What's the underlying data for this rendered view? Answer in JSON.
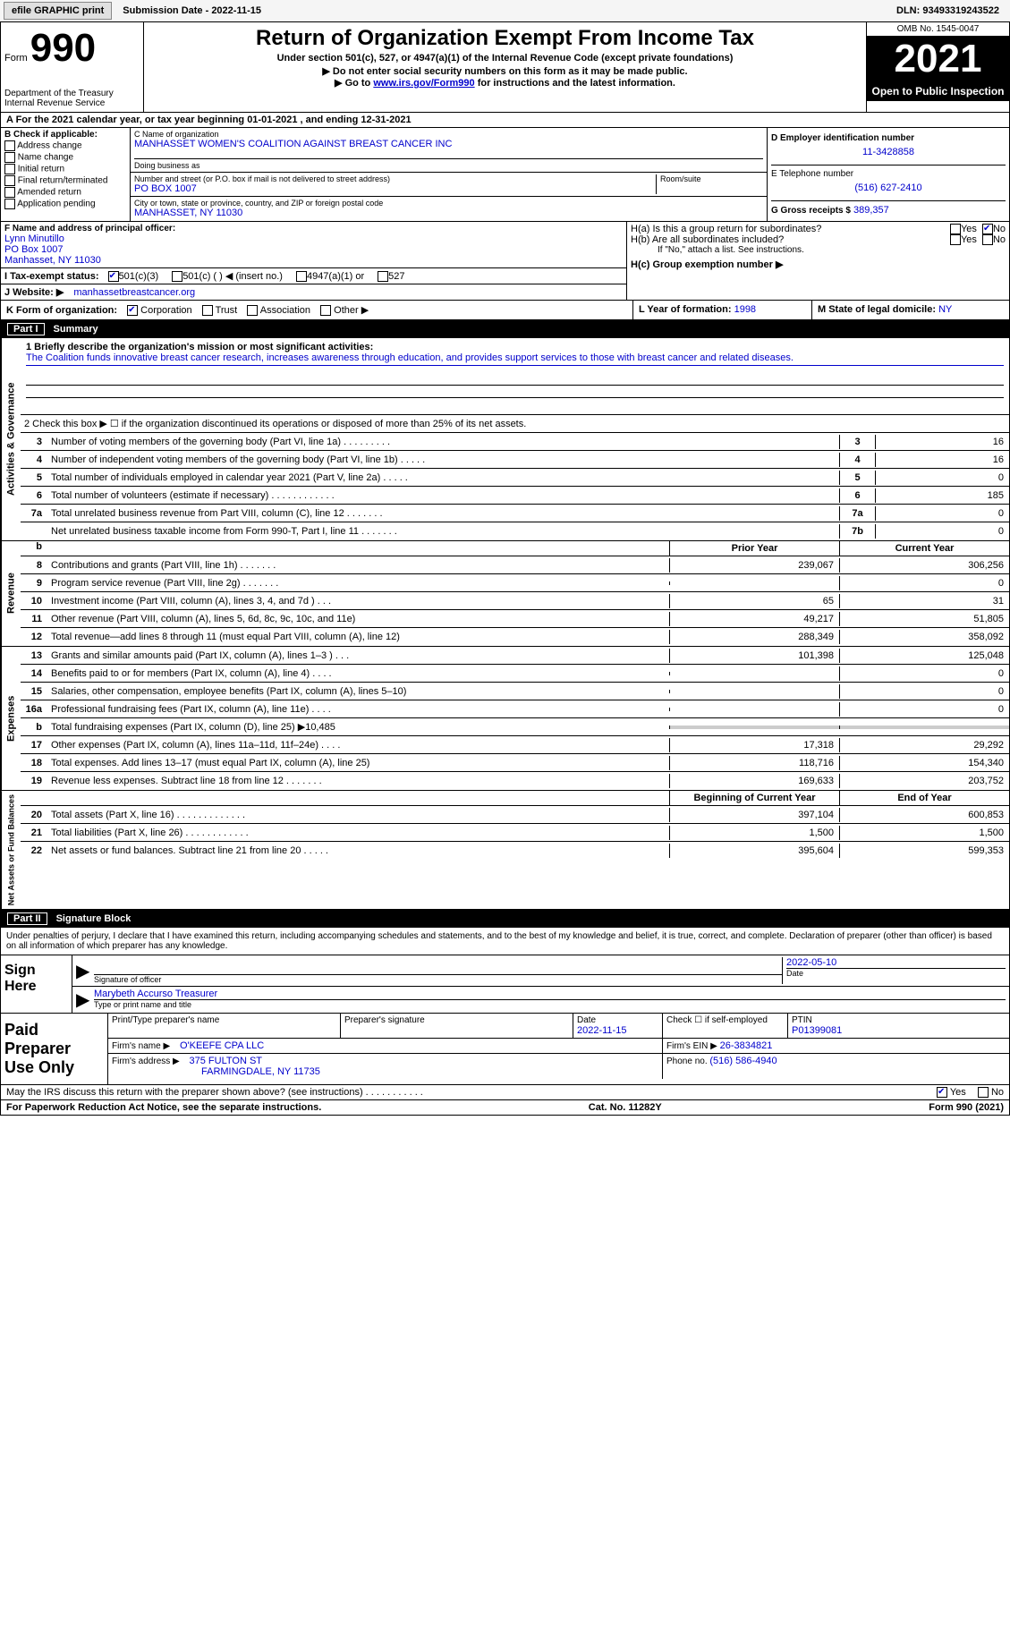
{
  "top": {
    "efile_btn": "efile GRAPHIC print",
    "submission_date_label": "Submission Date - 2022-11-15",
    "dln": "DLN: 93493319243522"
  },
  "header": {
    "form_label": "Form",
    "form_number": "990",
    "dept": "Department of the Treasury Internal Revenue Service",
    "title": "Return of Organization Exempt From Income Tax",
    "sub1": "Under section 501(c), 527, or 4947(a)(1) of the Internal Revenue Code (except private foundations)",
    "sub2": "▶ Do not enter social security numbers on this form as it may be made public.",
    "sub3_pre": "▶ Go to ",
    "sub3_link": "www.irs.gov/Form990",
    "sub3_post": " for instructions and the latest information.",
    "omb": "OMB No. 1545-0047",
    "tax_year": "2021",
    "open_public": "Open to Public Inspection"
  },
  "rowA": "A   For the 2021 calendar year, or tax year beginning 01-01-2021    , and ending 12-31-2021",
  "colB": {
    "header": "B Check if applicable:",
    "opts": [
      "Address change",
      "Name change",
      "Initial return",
      "Final return/terminated",
      "Amended return",
      "Application pending"
    ]
  },
  "colC": {
    "name_label": "C Name of organization",
    "name_val": "MANHASSET WOMEN'S COALITION AGAINST BREAST CANCER INC",
    "dba_label": "Doing business as",
    "addr_label": "Number and street (or P.O. box if mail is not delivered to street address)",
    "room_label": "Room/suite",
    "addr_val": "PO BOX 1007",
    "city_label": "City or town, state or province, country, and ZIP or foreign postal code",
    "city_val": "MANHASSET, NY  11030"
  },
  "colD": {
    "ein_label": "D  Employer identification number",
    "ein_val": "11-3428858",
    "phone_label": "E  Telephone number",
    "phone_val": "(516) 627-2410",
    "gross_label": "G  Gross receipts $",
    "gross_val": "389,357"
  },
  "rowF": {
    "label": "F  Name and address of principal officer:",
    "name": "Lynn Minutillo",
    "addr1": "PO Box 1007",
    "addr2": "Manhasset, NY  11030"
  },
  "rowH": {
    "ha": "H(a)  Is this a group return for subordinates?",
    "hb": "H(b)  Are all subordinates included?",
    "hb_note": "If \"No,\" attach a list. See instructions.",
    "hc": "H(c)  Group exemption number ▶",
    "yes": "Yes",
    "no": "No"
  },
  "rowI": {
    "label": "I   Tax-exempt status:",
    "o1": "501(c)(3)",
    "o2": "501(c) (  ) ◀ (insert no.)",
    "o3": "4947(a)(1) or",
    "o4": "527"
  },
  "rowJ": {
    "label": "J   Website: ▶",
    "val": "manhassetbreastcancer.org"
  },
  "rowK": {
    "label": "K Form of organization:",
    "opts": [
      "Corporation",
      "Trust",
      "Association",
      "Other ▶"
    ]
  },
  "rowL": {
    "label": "L  Year of formation:",
    "val": "1998"
  },
  "rowM": {
    "label": "M  State of legal domicile:",
    "val": "NY"
  },
  "parts": {
    "part1": "Part I",
    "summary": "Summary",
    "part2": "Part II",
    "sig_block": "Signature Block"
  },
  "vert_labels": {
    "ag": "Activities & Governance",
    "rev": "Revenue",
    "exp": "Expenses",
    "na": "Net Assets or Fund Balances"
  },
  "summary": {
    "line1_label": "1  Briefly describe the organization's mission or most significant activities:",
    "line1_val": "The Coalition funds innovative breast cancer research, increases awareness through education, and provides support services to those with breast cancer and related diseases.",
    "line2": "2  Check this box ▶ ☐  if the organization discontinued its operations or disposed of more than 25% of its net assets.",
    "lines_ag": [
      {
        "n": "3",
        "desc": "Number of voting members of the governing body (Part VI, line 1a)  .  .  .  .  .  .  .  .  .",
        "box": "3",
        "val": "16"
      },
      {
        "n": "4",
        "desc": "Number of independent voting members of the governing body (Part VI, line 1b)  .  .  .  .  .",
        "box": "4",
        "val": "16"
      },
      {
        "n": "5",
        "desc": "Total number of individuals employed in calendar year 2021 (Part V, line 2a)  .  .  .  .  .",
        "box": "5",
        "val": "0"
      },
      {
        "n": "6",
        "desc": "Total number of volunteers (estimate if necessary)   .  .  .  .  .  .  .  .  .  .  .  .",
        "box": "6",
        "val": "185"
      },
      {
        "n": "7a",
        "desc": "Total unrelated business revenue from Part VIII, column (C), line 12   .  .  .  .  .  .  .",
        "box": "7a",
        "val": "0"
      },
      {
        "n": "",
        "desc": "Net unrelated business taxable income from Form 990-T, Part I, line 11  .  .  .  .  .  .  .",
        "box": "7b",
        "val": "0"
      }
    ],
    "col_headers": {
      "b": "b",
      "prior": "Prior Year",
      "current": "Current Year"
    },
    "lines_rev": [
      {
        "n": "8",
        "desc": "Contributions and grants (Part VIII, line 1h)  .  .  .  .  .  .  .",
        "py": "239,067",
        "cy": "306,256"
      },
      {
        "n": "9",
        "desc": "Program service revenue (Part VIII, line 2g)  .  .  .  .  .  .  .",
        "py": "",
        "cy": "0"
      },
      {
        "n": "10",
        "desc": "Investment income (Part VIII, column (A), lines 3, 4, and 7d )  .  .  .",
        "py": "65",
        "cy": "31"
      },
      {
        "n": "11",
        "desc": "Other revenue (Part VIII, column (A), lines 5, 6d, 8c, 9c, 10c, and 11e)",
        "py": "49,217",
        "cy": "51,805"
      },
      {
        "n": "12",
        "desc": "Total revenue—add lines 8 through 11 (must equal Part VIII, column (A), line 12)",
        "py": "288,349",
        "cy": "358,092"
      }
    ],
    "lines_exp": [
      {
        "n": "13",
        "desc": "Grants and similar amounts paid (Part IX, column (A), lines 1–3 )  .  .  .",
        "py": "101,398",
        "cy": "125,048"
      },
      {
        "n": "14",
        "desc": "Benefits paid to or for members (Part IX, column (A), line 4)  .  .  .  .",
        "py": "",
        "cy": "0"
      },
      {
        "n": "15",
        "desc": "Salaries, other compensation, employee benefits (Part IX, column (A), lines 5–10)",
        "py": "",
        "cy": "0"
      },
      {
        "n": "16a",
        "desc": "Professional fundraising fees (Part IX, column (A), line 11e)  .  .  .  .",
        "py": "",
        "cy": "0"
      },
      {
        "n": "b",
        "desc": "Total fundraising expenses (Part IX, column (D), line 25) ▶10,485",
        "py": "SHADED",
        "cy": "SHADED"
      },
      {
        "n": "17",
        "desc": "Other expenses (Part IX, column (A), lines 11a–11d, 11f–24e)  .  .  .  .",
        "py": "17,318",
        "cy": "29,292"
      },
      {
        "n": "18",
        "desc": "Total expenses. Add lines 13–17 (must equal Part IX, column (A), line 25)",
        "py": "118,716",
        "cy": "154,340"
      },
      {
        "n": "19",
        "desc": "Revenue less expenses. Subtract line 18 from line 12  .  .  .  .  .  .  .",
        "py": "169,633",
        "cy": "203,752"
      }
    ],
    "na_headers": {
      "boc": "Beginning of Current Year",
      "eoy": "End of Year"
    },
    "lines_na": [
      {
        "n": "20",
        "desc": "Total assets (Part X, line 16)  .  .  .  .  .  .  .  .  .  .  .  .  .",
        "py": "397,104",
        "cy": "600,853"
      },
      {
        "n": "21",
        "desc": "Total liabilities (Part X, line 26)  .  .  .  .  .  .  .  .  .  .  .  .",
        "py": "1,500",
        "cy": "1,500"
      },
      {
        "n": "22",
        "desc": "Net assets or fund balances. Subtract line 21 from line 20  .  .  .  .  .",
        "py": "395,604",
        "cy": "599,353"
      }
    ]
  },
  "sig": {
    "declaration": "Under penalties of perjury, I declare that I have examined this return, including accompanying schedules and statements, and to the best of my knowledge and belief, it is true, correct, and complete. Declaration of preparer (other than officer) is based on all information of which preparer has any knowledge.",
    "sign_here": "Sign Here",
    "sig_officer": "Signature of officer",
    "date": "Date",
    "date_val": "2022-05-10",
    "name_title": "Marybeth Accurso  Treasurer",
    "typed": "Type or print name and title"
  },
  "preparer": {
    "label": "Paid Preparer Use Only",
    "print_name": "Print/Type preparer's name",
    "prep_sig": "Preparer's signature",
    "date_label": "Date",
    "date_val": "2022-11-15",
    "check_label": "Check ☐ if self-employed",
    "ptin_label": "PTIN",
    "ptin_val": "P01399081",
    "firm_name_label": "Firm's name    ▶",
    "firm_name": "O'KEEFE CPA LLC",
    "firm_ein_label": "Firm's EIN ▶",
    "firm_ein": "26-3834821",
    "firm_addr_label": "Firm's address ▶",
    "firm_addr1": "375 FULTON ST",
    "firm_addr2": "FARMINGDALE, NY  11735",
    "phone_label": "Phone no.",
    "phone": "(516) 586-4940"
  },
  "discuss": {
    "text": "May the IRS discuss this return with the preparer shown above? (see instructions)  .  .  .  .  .  .  .  .  .  .  .",
    "yes": "Yes",
    "no": "No"
  },
  "footer": {
    "paperwork": "For Paperwork Reduction Act Notice, see the separate instructions.",
    "cat": "Cat. No. 11282Y",
    "form": "Form 990 (2021)"
  },
  "colors": {
    "link": "#0000cc",
    "shaded": "#cccccc"
  }
}
